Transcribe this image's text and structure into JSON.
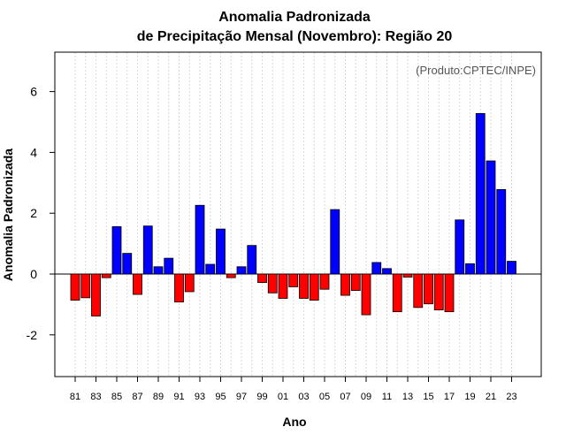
{
  "chart_data": {
    "type": "bar",
    "title_line1": "Anomalia Padronizada",
    "title_line2": "de Precipitação Mensal (Novembro): Região 20",
    "xlabel": "Ano",
    "ylabel": "Anomalia Padronizada",
    "credit": "(Produto:CPTEC/INPE)",
    "ylim": [
      -3.4,
      7.2
    ],
    "yticks": [
      -2,
      0,
      2,
      4,
      6
    ],
    "categories": [
      "81",
      "82",
      "83",
      "84",
      "85",
      "86",
      "87",
      "88",
      "89",
      "90",
      "91",
      "92",
      "93",
      "94",
      "95",
      "96",
      "97",
      "98",
      "99",
      "00",
      "01",
      "02",
      "03",
      "04",
      "05",
      "06",
      "07",
      "08",
      "09",
      "10",
      "11",
      "12",
      "13",
      "14",
      "15",
      "16",
      "17",
      "18",
      "19",
      "20",
      "21",
      "22",
      "23"
    ],
    "tick_labels": [
      "81",
      "83",
      "85",
      "87",
      "89",
      "91",
      "93",
      "95",
      "97",
      "99",
      "01",
      "03",
      "05",
      "07",
      "09",
      "11",
      "13",
      "15",
      "17",
      "19",
      "21",
      "23"
    ],
    "values": [
      -0.86,
      -0.78,
      -1.38,
      -0.12,
      1.56,
      0.68,
      -0.67,
      1.58,
      0.24,
      0.52,
      -0.92,
      -0.58,
      2.26,
      0.32,
      1.48,
      -0.12,
      0.24,
      0.94,
      -0.28,
      -0.62,
      -0.8,
      -0.42,
      -0.8,
      -0.86,
      -0.5,
      2.12,
      -0.7,
      -0.54,
      -1.34,
      0.38,
      0.18,
      -1.24,
      -0.1,
      -1.1,
      -0.98,
      -1.18,
      -1.24,
      1.78,
      0.34,
      5.28,
      3.72,
      2.78,
      0.42
    ],
    "colors": {
      "positive": "#0000ff",
      "negative": "#ff0000",
      "grid": "#d9d9d9"
    },
    "grid": "vertical dotted",
    "legend": "none"
  }
}
